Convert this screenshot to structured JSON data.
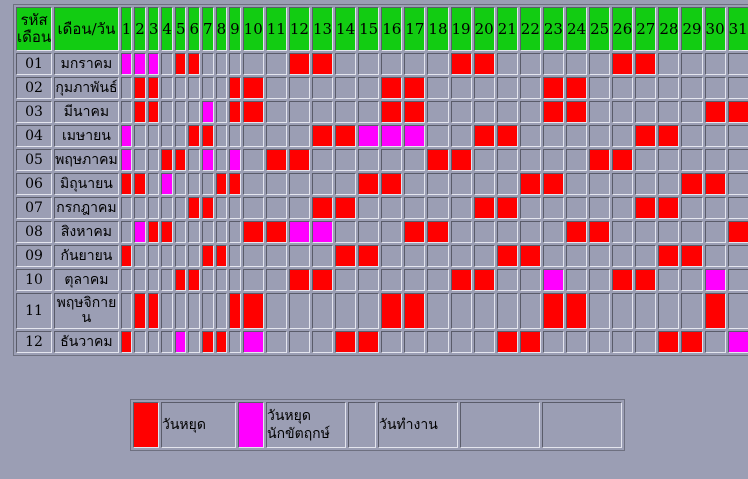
{
  "header": {
    "code": "รหัสเดือน",
    "month_day": "เดือน/วัน",
    "days": [
      "1",
      "2",
      "3",
      "4",
      "5",
      "6",
      "7",
      "8",
      "9",
      "10",
      "11",
      "12",
      "13",
      "14",
      "15",
      "16",
      "17",
      "18",
      "19",
      "20",
      "21",
      "22",
      "23",
      "24",
      "25",
      "26",
      "27",
      "28",
      "29",
      "30",
      "31"
    ]
  },
  "colors": {
    "holiday": "#ff0000",
    "auspicious": "#ff00ff",
    "header": "#12cc12"
  },
  "months": [
    {
      "code": "01",
      "name": "มกราคม",
      "holidays": [
        5,
        6,
        12,
        13,
        19,
        20,
        26,
        27
      ],
      "auspicious": [
        1,
        2,
        3
      ]
    },
    {
      "code": "02",
      "name": "กุมภาพันธ์",
      "holidays": [
        2,
        3,
        9,
        10,
        16,
        17,
        23,
        24
      ],
      "auspicious": []
    },
    {
      "code": "03",
      "name": "มีนาคม",
      "holidays": [
        2,
        3,
        9,
        10,
        16,
        17,
        23,
        24,
        30,
        31
      ],
      "auspicious": [
        7
      ]
    },
    {
      "code": "04",
      "name": "เมษายน",
      "holidays": [
        6,
        7,
        13,
        14,
        20,
        21,
        27,
        28
      ],
      "auspicious": [
        1,
        15,
        16,
        17
      ]
    },
    {
      "code": "05",
      "name": "พฤษภาคม",
      "holidays": [
        4,
        5,
        11,
        12,
        18,
        19,
        25,
        26
      ],
      "auspicious": [
        1,
        7,
        9
      ]
    },
    {
      "code": "06",
      "name": "มิถุนายน",
      "holidays": [
        1,
        2,
        8,
        9,
        15,
        16,
        22,
        23,
        29,
        30
      ],
      "auspicious": [
        4
      ]
    },
    {
      "code": "07",
      "name": "กรกฎาคม",
      "holidays": [
        6,
        7,
        13,
        14,
        20,
        21,
        27,
        28
      ],
      "auspicious": []
    },
    {
      "code": "08",
      "name": "สิงหาคม",
      "holidays": [
        3,
        4,
        10,
        11,
        17,
        18,
        24,
        25,
        31
      ],
      "auspicious": [
        2,
        12,
        13
      ]
    },
    {
      "code": "09",
      "name": "กันยายน",
      "holidays": [
        1,
        7,
        8,
        14,
        15,
        21,
        22,
        28,
        29
      ],
      "auspicious": []
    },
    {
      "code": "10",
      "name": "ตุลาคม",
      "holidays": [
        5,
        6,
        12,
        13,
        19,
        20,
        26,
        27
      ],
      "auspicious": [
        23,
        30
      ]
    },
    {
      "code": "11",
      "name": "พฤษจิกายน",
      "holidays": [
        2,
        3,
        9,
        10,
        16,
        17,
        23,
        24,
        30
      ],
      "auspicious": []
    },
    {
      "code": "12",
      "name": "ธันวาคม",
      "holidays": [
        1,
        7,
        8,
        14,
        15,
        21,
        22,
        28,
        29
      ],
      "auspicious": [
        5,
        10,
        31
      ]
    }
  ],
  "legend": {
    "holiday": "วันหยุด",
    "auspicious": "วันหยุดนักขัตฤกษ์",
    "workday": "วันทำงาน"
  }
}
